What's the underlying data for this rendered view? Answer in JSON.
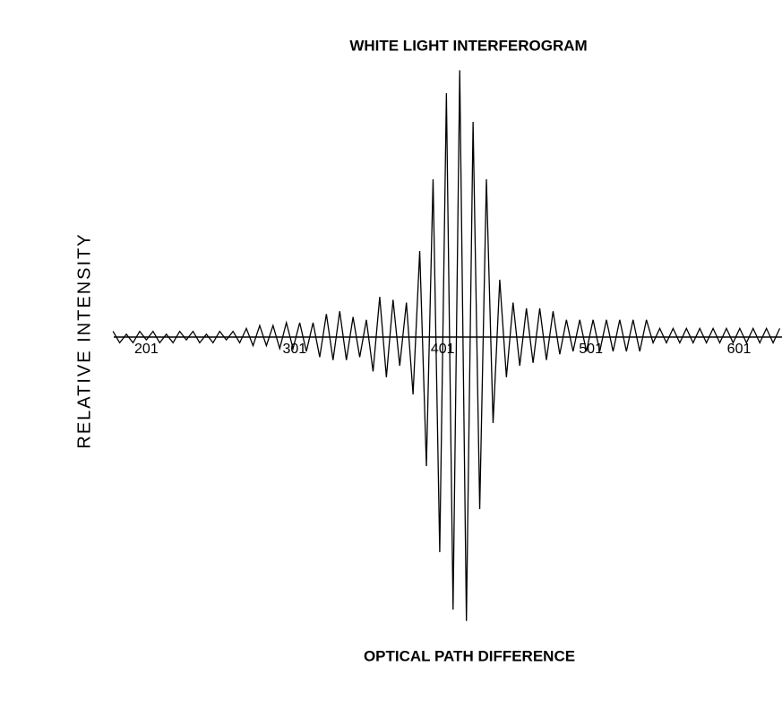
{
  "chart_data": {
    "type": "line",
    "title": "WHITE LIGHT INTERFEROGRAM",
    "x_label": "OPTICAL PATH DIFFERENCE",
    "y_label": "RELATIVE INTENSITY",
    "xlim": [
      179,
      630
    ],
    "ylim": [
      -1,
      1
    ],
    "xticks": [
      201,
      301,
      401,
      501,
      601
    ],
    "grid": false,
    "series": [
      {
        "name": null,
        "color": "#000000",
        "x": [
          178.5,
          183,
          187.5,
          192,
          196.5,
          201,
          205.5,
          210,
          214.5,
          219,
          223.5,
          228,
          232.5,
          237,
          241.5,
          246,
          250.5,
          255,
          259.5,
          264,
          268.5,
          273,
          277.5,
          282,
          286.5,
          291,
          295.5,
          300,
          304.5,
          309,
          313.5,
          318,
          322.5,
          327,
          331.5,
          336,
          340.5,
          345,
          349.5,
          354,
          358.5,
          363,
          367.5,
          372,
          376.5,
          381,
          385.5,
          390,
          394.5,
          399,
          403.5,
          408,
          412.5,
          417,
          421.5,
          426,
          430.5,
          435,
          439.5,
          444,
          448.5,
          453,
          457.5,
          462,
          466.5,
          471,
          475.5,
          480,
          484.5,
          489,
          493.5,
          498,
          502.5,
          507,
          511.5,
          516,
          520.5,
          525,
          529.5,
          534,
          538.5,
          543,
          547.5,
          552,
          556.5,
          561,
          565.5,
          570,
          574.5,
          579,
          583.5,
          588,
          592.5,
          597,
          601.5,
          606,
          610.5,
          615,
          619.5,
          624,
          628.5
        ],
        "values": [
          0.02,
          -0.02,
          0.01,
          -0.02,
          0.02,
          -0.01,
          0.02,
          -0.02,
          0.01,
          -0.02,
          0.02,
          -0.01,
          0.02,
          -0.02,
          0.01,
          -0.02,
          0.02,
          -0.01,
          0.02,
          -0.02,
          0.03,
          -0.03,
          0.04,
          -0.03,
          0.04,
          -0.04,
          0.05,
          -0.04,
          0.05,
          -0.05,
          0.05,
          -0.07,
          0.08,
          -0.08,
          0.09,
          -0.08,
          0.07,
          -0.07,
          0.06,
          -0.12,
          0.14,
          -0.14,
          0.13,
          -0.1,
          0.12,
          -0.2,
          0.3,
          -0.45,
          0.55,
          -0.75,
          0.85,
          -0.95,
          0.93,
          -0.99,
          0.75,
          -0.6,
          0.55,
          -0.3,
          0.2,
          -0.14,
          0.12,
          -0.1,
          0.1,
          -0.09,
          0.1,
          -0.08,
          0.09,
          -0.06,
          0.06,
          -0.05,
          0.06,
          -0.05,
          0.06,
          -0.05,
          0.06,
          -0.05,
          0.06,
          -0.05,
          0.06,
          -0.05,
          0.06,
          -0.02,
          0.03,
          -0.02,
          0.03,
          -0.02,
          0.03,
          -0.02,
          0.03,
          -0.02,
          0.03,
          -0.02,
          0.03,
          -0.02,
          0.03,
          -0.02,
          0.03,
          -0.02,
          0.03,
          -0.02,
          0.03
        ]
      }
    ]
  }
}
